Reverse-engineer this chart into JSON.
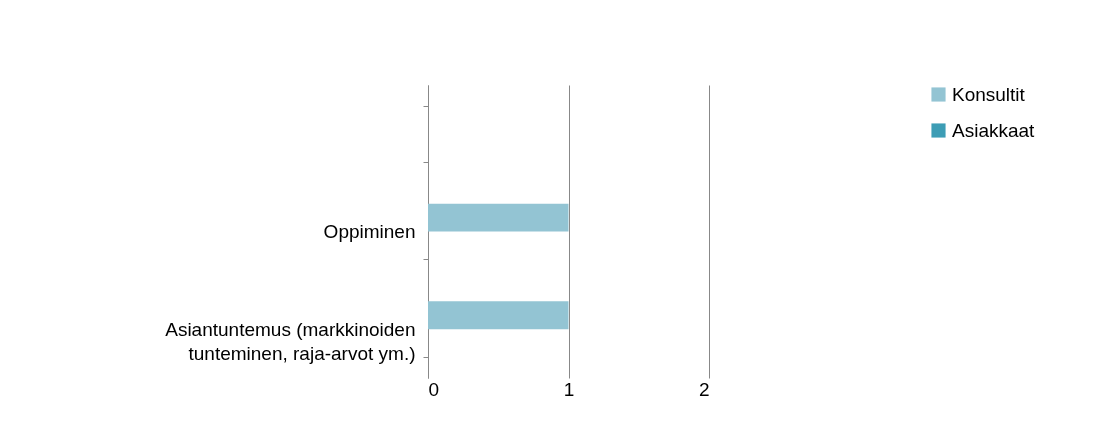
{
  "chart_data": {
    "type": "bar",
    "orientation": "horizontal",
    "categories": [
      null,
      "Oppiminen",
      "Asiantuntemus (markkinoiden tunteminen, raja-arvot ym.)"
    ],
    "series": [
      {
        "name": "Konsultit",
        "color": "#93c4d3",
        "values": [
          null,
          1,
          1
        ]
      },
      {
        "name": "Asiakkaat",
        "color": "#3d9db5",
        "values": [
          null,
          0,
          0
        ]
      }
    ],
    "xlim": [
      0,
      2
    ],
    "xticks": [
      0,
      1,
      2
    ],
    "grid": "x",
    "legend": "right"
  }
}
